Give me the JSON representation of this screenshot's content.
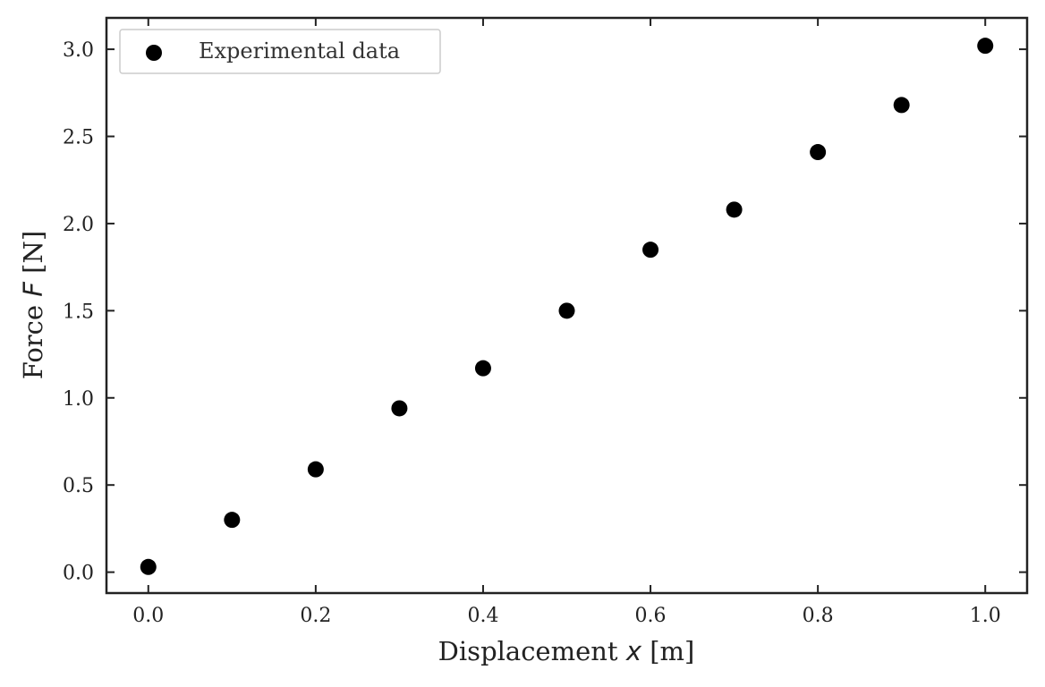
{
  "chart_data": {
    "type": "scatter",
    "title": "",
    "xlabel": {
      "prefix": "Displacement ",
      "var": "x",
      "suffix": " [m]"
    },
    "ylabel": {
      "prefix": "Force ",
      "var": "F",
      "suffix": " [N]"
    },
    "xlim": [
      -0.05,
      1.05
    ],
    "ylim": [
      -0.12,
      3.18
    ],
    "xticks": [
      0.0,
      0.2,
      0.4,
      0.6,
      0.8,
      1.0
    ],
    "xtick_labels": [
      "0.0",
      "0.2",
      "0.4",
      "0.6",
      "0.8",
      "1.0"
    ],
    "yticks": [
      0.0,
      0.5,
      1.0,
      1.5,
      2.0,
      2.5,
      3.0
    ],
    "ytick_labels": [
      "0.0",
      "0.5",
      "1.0",
      "1.5",
      "2.0",
      "2.5",
      "3.0"
    ],
    "grid": false,
    "legend": {
      "position": "top-left"
    },
    "series": [
      {
        "name": "Experimental data",
        "color": "#000000",
        "x": [
          0.0,
          0.1,
          0.2,
          0.3,
          0.4,
          0.5,
          0.6,
          0.7,
          0.8,
          0.9,
          1.0
        ],
        "y": [
          0.03,
          0.3,
          0.59,
          0.94,
          1.17,
          1.5,
          1.85,
          2.08,
          2.41,
          2.68,
          3.02
        ]
      }
    ]
  }
}
